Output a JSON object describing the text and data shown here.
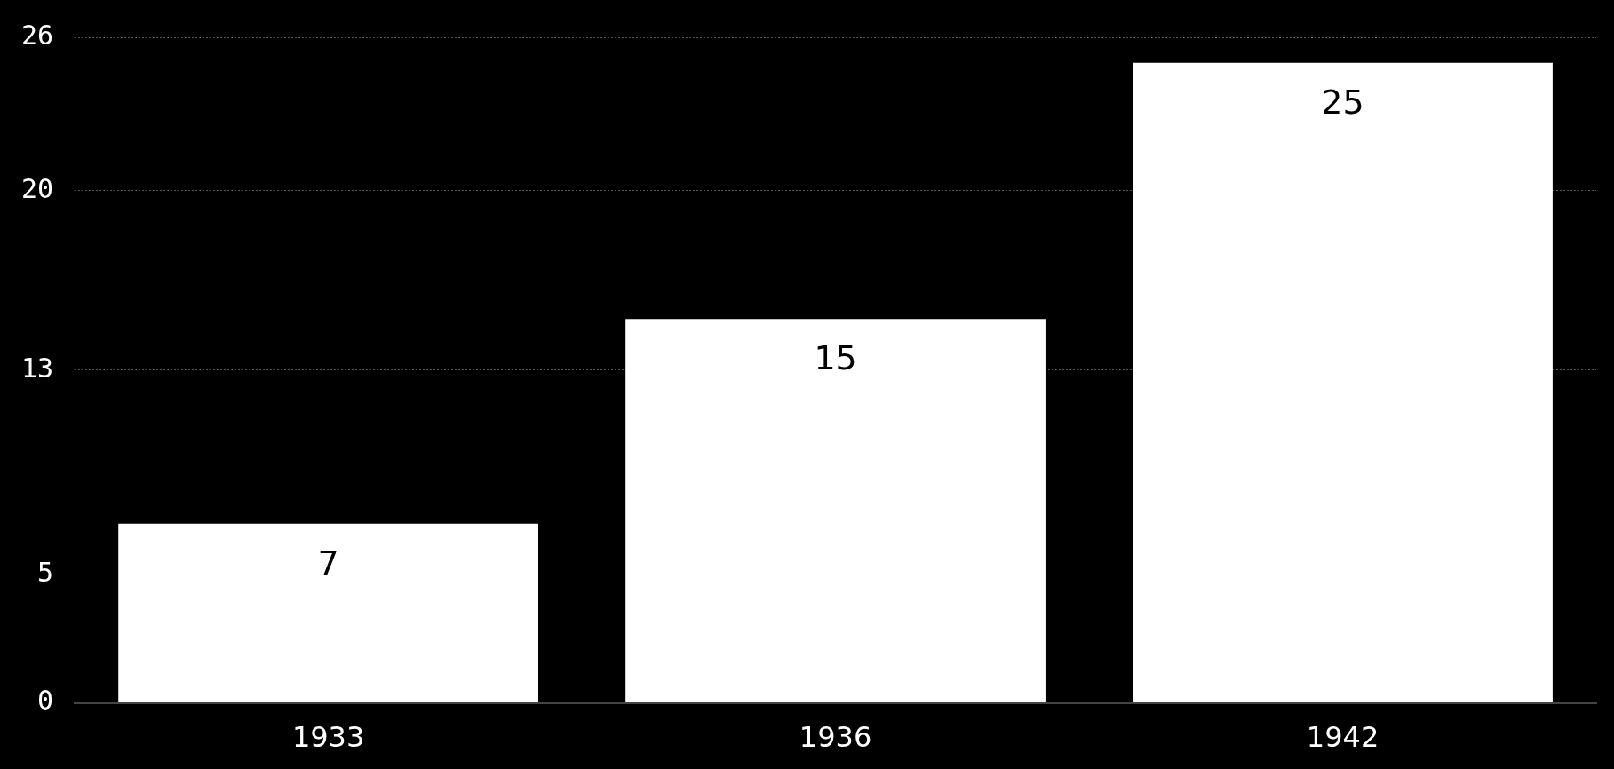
{
  "chart_data": {
    "type": "bar",
    "categories": [
      "1933",
      "1936",
      "1942"
    ],
    "values": [
      7,
      15,
      25
    ],
    "color": "#ffffff",
    "ylim": [
      0,
      26
    ],
    "yticks": [
      0,
      5,
      13,
      20,
      26
    ],
    "grid": "y",
    "data_labels": true
  }
}
